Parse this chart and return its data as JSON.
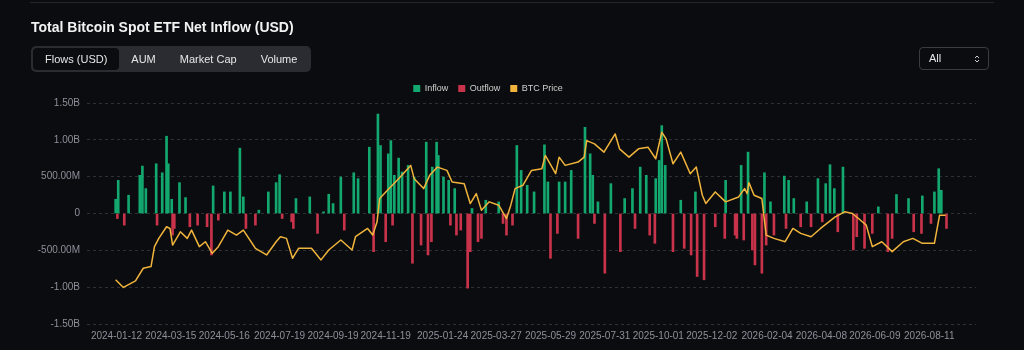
{
  "chart_data": {
    "type": "bar",
    "title": "Total Bitcoin Spot ETF Net Inflow (USD)",
    "annotations": [
      "Flows (USD)",
      "AUM",
      "Market Cap",
      "Volume",
      "All"
    ],
    "xlim": [
      "2024-01-10",
      "2026-09-02"
    ],
    "xticks": [
      "2024-01-12",
      "2024-03-15",
      "2024-05-16",
      "2024-07-19",
      "2024-09-19",
      "2024-11-19",
      "2025-01-24",
      "2025-03-27",
      "2025-05-29",
      "2025-07-31",
      "2025-10-01",
      "2025-12-02",
      "2026-02-04",
      "2026-04-08",
      "2026-06-09",
      "2026-08-11"
    ],
    "ylim": [
      -1500000000,
      1500000000
    ],
    "yticks": [
      {
        "value": -1500000000,
        "label": "-1.50B"
      },
      {
        "value": -1000000000,
        "label": "-1.00B"
      },
      {
        "value": -500000000,
        "label": "-500.00M"
      },
      0,
      {
        "value": 500000000,
        "label": "500.00M"
      },
      {
        "value": 1000000000,
        "label": "1.00B"
      },
      {
        "value": 1500000000,
        "label": "1.50B"
      }
    ],
    "grid": "y",
    "legend": "top",
    "series": [
      {
        "name": "Inflow",
        "color": "#13a86f",
        "x": [
          "2024-01-11",
          "2024-01-14",
          "2024-01-26",
          "2024-02-08",
          "2024-02-11",
          "2024-02-15",
          "2024-02-27",
          "2024-03-05",
          "2024-03-10",
          "2024-03-12",
          "2024-03-16",
          "2024-03-25",
          "2024-04-01",
          "2024-05-03",
          "2024-05-16",
          "2024-05-23",
          "2024-06-03",
          "2024-06-07",
          "2024-06-25",
          "2024-07-06",
          "2024-07-15",
          "2024-07-19",
          "2024-08-07",
          "2024-08-23",
          "2024-09-08",
          "2024-09-14",
          "2024-09-19",
          "2024-09-28",
          "2024-10-13",
          "2024-10-18",
          "2024-10-31",
          "2024-11-10",
          "2024-11-13",
          "2024-11-22",
          "2024-11-25",
          "2024-11-29",
          "2024-12-04",
          "2024-12-08",
          "2024-12-15",
          "2024-12-22",
          "2025-01-05",
          "2025-01-12",
          "2025-01-17",
          "2025-01-19",
          "2025-01-25",
          "2025-01-31",
          "2025-02-07",
          "2025-02-27",
          "2025-03-15",
          "2025-03-30",
          "2025-04-20",
          "2025-04-25",
          "2025-05-02",
          "2025-05-10",
          "2025-05-22",
          "2025-05-26",
          "2025-06-08",
          "2025-06-15",
          "2025-06-22",
          "2025-07-08",
          "2025-07-14",
          "2025-07-17",
          "2025-07-23",
          "2025-08-07",
          "2025-08-23",
          "2025-09-01",
          "2025-09-10",
          "2025-09-17",
          "2025-09-28",
          "2025-10-02",
          "2025-10-05",
          "2025-10-09",
          "2025-10-27",
          "2025-11-13",
          "2025-12-18",
          "2026-01-05",
          "2026-01-13",
          "2026-02-01",
          "2026-02-08",
          "2026-02-24",
          "2026-03-01",
          "2026-03-07",
          "2026-03-22",
          "2026-04-04",
          "2026-04-13",
          "2026-04-18",
          "2026-04-23",
          "2026-05-03",
          "2026-06-13",
          "2026-07-04",
          "2026-07-18",
          "2026-08-03",
          "2026-08-17",
          "2026-08-22",
          "2026-08-25"
        ],
        "values": [
          193000000,
          450000000,
          248000000,
          518000000,
          644000000,
          338000000,
          675000000,
          553000000,
          1049000000,
          675000000,
          193000000,
          419000000,
          216000000,
          374000000,
          293000000,
          293000000,
          887000000,
          225000000,
          45000000,
          293000000,
          419000000,
          527000000,
          203000000,
          225000000,
          23000000,
          261000000,
          135000000,
          495000000,
          553000000,
          473000000,
          900000000,
          1350000000,
          923000000,
          810000000,
          990000000,
          518000000,
          752000000,
          563000000,
          653000000,
          495000000,
          968000000,
          630000000,
          968000000,
          788000000,
          495000000,
          450000000,
          338000000,
          68000000,
          180000000,
          158000000,
          923000000,
          585000000,
          383000000,
          293000000,
          932000000,
          428000000,
          428000000,
          428000000,
          585000000,
          1170000000,
          810000000,
          518000000,
          158000000,
          405000000,
          203000000,
          338000000,
          630000000,
          518000000,
          473000000,
          720000000,
          1193000000,
          653000000,
          180000000,
          293000000,
          450000000,
          653000000,
          833000000,
          553000000,
          158000000,
          508000000,
          450000000,
          203000000,
          158000000,
          473000000,
          405000000,
          662000000,
          338000000,
          630000000,
          90000000,
          257000000,
          203000000,
          239000000,
          293000000,
          608000000,
          315000000
        ]
      },
      {
        "name": "Outflow",
        "color": "#c8334b",
        "x": [
          "2024-01-13",
          "2024-01-21",
          "2024-02-28",
          "2024-03-17",
          "2024-03-19",
          "2024-04-06",
          "2024-04-15",
          "2024-04-26",
          "2024-05-01",
          "2024-05-09",
          "2024-06-10",
          "2024-06-21",
          "2024-07-22",
          "2024-08-02",
          "2024-08-04",
          "2024-09-01",
          "2024-10-02",
          "2024-11-05",
          "2024-11-19",
          "2024-11-27",
          "2024-12-20",
          "2024-12-30",
          "2025-01-07",
          "2025-01-11",
          "2025-02-02",
          "2025-02-09",
          "2025-02-14",
          "2025-02-22",
          "2025-02-25",
          "2025-03-06",
          "2025-03-10",
          "2025-04-04",
          "2025-04-08",
          "2025-04-15",
          "2025-05-29",
          "2025-06-06",
          "2025-06-30",
          "2025-07-19",
          "2025-07-31",
          "2025-08-18",
          "2025-09-04",
          "2025-09-21",
          "2025-09-27",
          "2025-10-18",
          "2025-10-31",
          "2025-11-08",
          "2025-11-15",
          "2025-11-23",
          "2025-12-06",
          "2025-12-17",
          "2025-12-29",
          "2025-12-31",
          "2026-01-08",
          "2026-01-18",
          "2026-01-21",
          "2026-01-29",
          "2026-02-03",
          "2026-02-12",
          "2026-02-26",
          "2026-03-15",
          "2026-03-27",
          "2026-04-09",
          "2026-04-27",
          "2026-05-15",
          "2026-05-19",
          "2026-05-28",
          "2026-06-06",
          "2026-06-24",
          "2026-06-29",
          "2026-07-24",
          "2026-08-02",
          "2026-08-13",
          "2026-08-31"
        ],
        "values": [
          -68000000,
          -158000000,
          -158000000,
          -293000000,
          -203000000,
          -180000000,
          -158000000,
          -180000000,
          -563000000,
          -90000000,
          -203000000,
          -158000000,
          -68000000,
          -113000000,
          -203000000,
          -270000000,
          -225000000,
          -518000000,
          -383000000,
          -158000000,
          -675000000,
          -428000000,
          -563000000,
          -383000000,
          -158000000,
          -293000000,
          -225000000,
          -1013000000,
          -518000000,
          -383000000,
          -338000000,
          -135000000,
          -293000000,
          -158000000,
          -608000000,
          -270000000,
          -338000000,
          -135000000,
          -810000000,
          -518000000,
          -203000000,
          -293000000,
          -405000000,
          -518000000,
          -473000000,
          -563000000,
          -855000000,
          -900000000,
          -180000000,
          -338000000,
          -293000000,
          -338000000,
          -360000000,
          -495000000,
          -698000000,
          -810000000,
          -428000000,
          -293000000,
          -203000000,
          -180000000,
          -180000000,
          -113000000,
          -248000000,
          -495000000,
          -315000000,
          -473000000,
          -270000000,
          -518000000,
          -338000000,
          -248000000,
          -270000000,
          -135000000,
          -203000000
        ]
      },
      {
        "name": "BTC Price",
        "type": "line",
        "color": "#f0b43c",
        "x": [
          "2024-01-11",
          "2024-01-20",
          "2024-02-03",
          "2024-02-12",
          "2024-02-21",
          "2024-02-25",
          "2024-03-01",
          "2024-03-10",
          "2024-03-14",
          "2024-03-17",
          "2024-03-26",
          "2024-04-03",
          "2024-04-08",
          "2024-04-17",
          "2024-04-24",
          "2024-05-02",
          "2024-05-09",
          "2024-05-20",
          "2024-05-30",
          "2024-06-07",
          "2024-06-21",
          "2024-07-04",
          "2024-07-15",
          "2024-07-20",
          "2024-07-27",
          "2024-08-03",
          "2024-08-10",
          "2024-08-25",
          "2024-09-05",
          "2024-09-14",
          "2024-09-28",
          "2024-10-11",
          "2024-10-15",
          "2024-10-29",
          "2024-11-04",
          "2024-11-09",
          "2024-11-12",
          "2024-11-23",
          "2024-12-04",
          "2024-12-18",
          "2024-12-22",
          "2025-01-02",
          "2025-01-09",
          "2025-01-18",
          "2025-01-29",
          "2025-02-04",
          "2025-02-18",
          "2025-02-25",
          "2025-03-04",
          "2025-03-10",
          "2025-03-19",
          "2025-03-30",
          "2025-04-08",
          "2025-04-13",
          "2025-04-18",
          "2025-04-27",
          "2025-05-07",
          "2025-05-19",
          "2025-05-23",
          "2025-06-04",
          "2025-06-08",
          "2025-06-15",
          "2025-06-30",
          "2025-07-07",
          "2025-07-10",
          "2025-07-19",
          "2025-07-30",
          "2025-08-12",
          "2025-08-17",
          "2025-08-28",
          "2025-09-08",
          "2025-09-19",
          "2025-09-28",
          "2025-10-05",
          "2025-10-10",
          "2025-10-18",
          "2025-10-27",
          "2025-11-07",
          "2025-11-14",
          "2025-11-21",
          "2025-11-25",
          "2025-12-06",
          "2025-12-18",
          "2026-01-02",
          "2026-01-09",
          "2026-01-12",
          "2026-01-14",
          "2026-01-20",
          "2026-01-29",
          "2026-02-03",
          "2026-02-12",
          "2026-02-25",
          "2026-03-06",
          "2026-03-15",
          "2026-03-27",
          "2026-04-07",
          "2026-04-24",
          "2026-05-05",
          "2026-05-14",
          "2026-05-21",
          "2026-05-30",
          "2026-06-06",
          "2026-06-17",
          "2026-06-29",
          "2026-07-12",
          "2026-07-23",
          "2026-08-03",
          "2026-08-17",
          "2026-08-23",
          "2026-08-30"
        ],
        "values": [
          -900000000,
          -1004000000,
          -914000000,
          -743000000,
          -720000000,
          -450000000,
          -338000000,
          -180000000,
          -203000000,
          -428000000,
          -248000000,
          -338000000,
          -225000000,
          -450000000,
          -383000000,
          -540000000,
          -450000000,
          -225000000,
          -293000000,
          -225000000,
          -473000000,
          -563000000,
          -383000000,
          -315000000,
          -338000000,
          -608000000,
          -473000000,
          -473000000,
          -630000000,
          -495000000,
          -360000000,
          -495000000,
          -315000000,
          -203000000,
          -293000000,
          -113000000,
          203000000,
          338000000,
          473000000,
          653000000,
          473000000,
          338000000,
          518000000,
          630000000,
          585000000,
          428000000,
          405000000,
          135000000,
          270000000,
          45000000,
          158000000,
          113000000,
          -68000000,
          113000000,
          338000000,
          383000000,
          585000000,
          608000000,
          788000000,
          540000000,
          765000000,
          653000000,
          698000000,
          765000000,
          990000000,
          945000000,
          833000000,
          1080000000,
          878000000,
          765000000,
          878000000,
          900000000,
          743000000,
          1103000000,
          1013000000,
          675000000,
          833000000,
          540000000,
          630000000,
          248000000,
          135000000,
          293000000,
          158000000,
          225000000,
          338000000,
          270000000,
          419000000,
          248000000,
          203000000,
          -293000000,
          -338000000,
          -383000000,
          -203000000,
          -270000000,
          -315000000,
          -203000000,
          -45000000,
          23000000,
          0,
          -68000000,
          -158000000,
          -450000000,
          -383000000,
          -518000000,
          -383000000,
          -338000000,
          -405000000,
          -405000000,
          -23000000,
          -23000000
        ]
      }
    ]
  }
}
